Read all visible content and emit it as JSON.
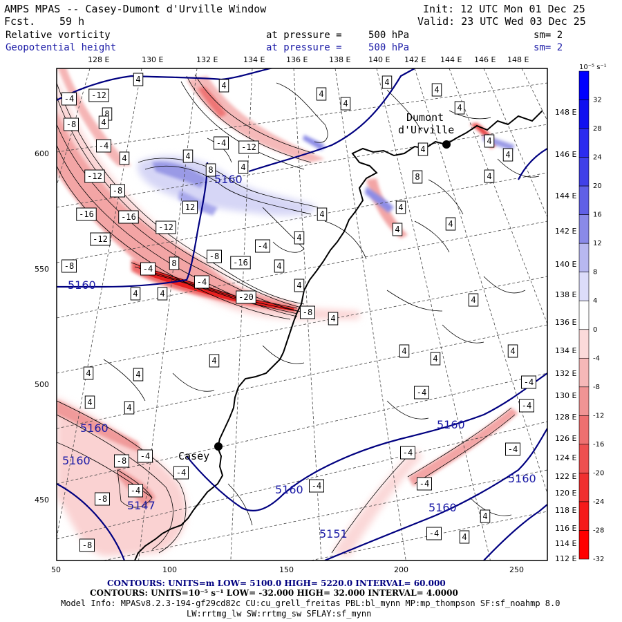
{
  "header": {
    "title": "AMPS MPAS -- Casey-Dumont d'Urville Window",
    "fcst_label": "Fcst.",
    "fcst_value": "59 h",
    "init": "Init: 12 UTC Mon 01 Dec 25",
    "valid": "Valid: 23 UTC Wed 03 Dec 25",
    "field1_name": "Relative vorticity",
    "field1_level": "at pressure =",
    "field1_value": "500 hPa",
    "field1_sm": "sm= 2",
    "field2_name": "Geopotential height",
    "field2_level": "at pressure =",
    "field2_value": "500 hPa",
    "field2_sm": "sm= 2"
  },
  "map": {
    "top_longitudes": [
      "128 E",
      "130 E",
      "132 E",
      "134 E",
      "136 E",
      "138 E",
      "140 E",
      "142 E",
      "144 E",
      "146 E",
      "148 E"
    ],
    "right_longitudes": [
      "148 E",
      "146 E",
      "144 E",
      "142 E",
      "140 E",
      "138 E",
      "136 E",
      "134 E",
      "132 E",
      "130 E",
      "128 E",
      "126 E",
      "124 E",
      "122 E",
      "120 E",
      "118 E",
      "116 E",
      "114 E",
      "112 E"
    ],
    "x_ticks": [
      "50",
      "100",
      "150",
      "200",
      "250"
    ],
    "y_ticks": [
      "600",
      "550",
      "500",
      "450"
    ],
    "stations": [
      {
        "name": "Dumont",
        "name2": "d'Urville"
      },
      {
        "name": "Casey"
      }
    ],
    "height_labels": [
      "5160",
      "5160",
      "5160",
      "5160",
      "5160",
      "5160",
      "5160",
      "5160",
      "5147",
      "5151"
    ],
    "vort_labels_neg": [
      "-4",
      "-12",
      "-8",
      "-4",
      "-12",
      "-8",
      "-16",
      "-16",
      "-12",
      "-12",
      "-8",
      "-16",
      "-8",
      "-4",
      "-4",
      "-4",
      "-20",
      "-8",
      "-8",
      "-4",
      "-4",
      "-8",
      "-8",
      "-4",
      "-4",
      "-4",
      "-4",
      "-4",
      "-4",
      "-4",
      "-4",
      "-4",
      "-4",
      "-12"
    ],
    "vort_labels_pos": [
      "4",
      "4",
      "8",
      "4",
      "4",
      "4",
      "4",
      "4",
      "4",
      "4",
      "4",
      "4",
      "4",
      "4",
      "8",
      "4",
      "4",
      "4",
      "4",
      "4",
      "4",
      "4",
      "4",
      "4",
      "4",
      "4",
      "4",
      "4",
      "4",
      "4",
      "4",
      "4",
      "4",
      "4",
      "12",
      "8",
      "8",
      "4",
      "4",
      "4",
      "4"
    ]
  },
  "colorbar": {
    "unit_label": "10⁻⁵ s⁻¹",
    "labels": [
      "32",
      "28",
      "24",
      "20",
      "16",
      "12",
      "8",
      "4",
      "0",
      "-4",
      "-8",
      "-12",
      "-16",
      "-20",
      "-24",
      "-28",
      "-32"
    ],
    "colors": [
      "#0000ff",
      "#1010f0",
      "#2b2bef",
      "#4040e8",
      "#6060e6",
      "#8a8ae8",
      "#b8b8f0",
      "#dcdcfa",
      "#ffffff",
      "#fbdada",
      "#f6b8b8",
      "#f09494",
      "#ee7070",
      "#ee5050",
      "#f03030",
      "#f51a1a",
      "#ff0000"
    ]
  },
  "footer": {
    "contours1": "CONTOURS:  UNITS=m  LOW=  5100.0         HIGH=  5220.0       INTERVAL=  60.000",
    "contours2": "CONTOURS:  UNITS=10⁻⁵ s⁻¹  LOW= -32.000      HIGH=  32.000      INTERVAL=   4.0000",
    "model_info": "Model Info: MPASv8.2.3-194-gf29cd82c CU:cu_grell_freitas PBL:bl_mynn MP:mp_thompson SF:sf_noahmp 8.0",
    "model_info2": "LW:rrtmg_lw SW:rrtmg_sw SFLAY:sf_mynn"
  }
}
